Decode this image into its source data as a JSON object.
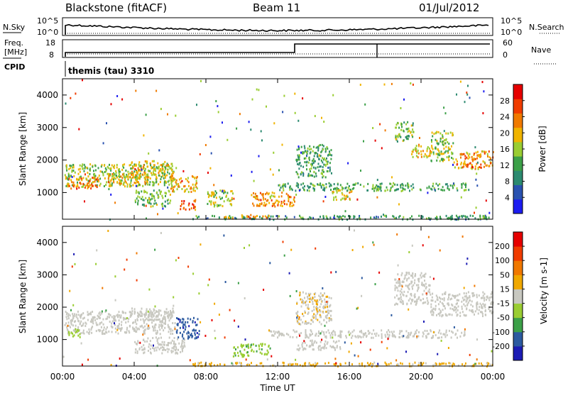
{
  "header": {
    "station": "Blackstone (fitACF)",
    "beam": "Beam 11",
    "date": "01/Jul/2012"
  },
  "noise_panel": {
    "left_label": "N.Sky",
    "right_label": "N.Search",
    "left_ticks": [
      "10^5",
      "10^0"
    ],
    "right_ticks": [
      "10^5",
      "10^0"
    ]
  },
  "freq_panel": {
    "label_line1": "Freq.",
    "label_line2": "[MHz]",
    "cpid_label": "CPID",
    "right_label": "Nave",
    "left_ticks": [
      "18",
      "8"
    ],
    "right_ticks": [
      "60",
      "0"
    ],
    "cpid_text": "themis (tau) 3310"
  },
  "colors": {
    "power_scale": [
      "#1c1cf0",
      "#2a52b0",
      "#2c8a70",
      "#3ca048",
      "#9acd32",
      "#f0b400",
      "#f07a00",
      "#f03c00",
      "#e60000"
    ],
    "velocity_scale": [
      "#e60000",
      "#f03c00",
      "#f07800",
      "#f0a800",
      "#c8c8c0",
      "#9acd32",
      "#3ca048",
      "#2c5aa0",
      "#1c1cb4"
    ]
  },
  "chart_data": [
    {
      "type": "heatmap",
      "title": "Power",
      "xlabel": "Time UT",
      "ylabel": "Slant Range [km]",
      "xlim": [
        "00:00",
        "24:00"
      ],
      "x_tick_labels": [
        "00:00",
        "04:00",
        "08:00",
        "12:00",
        "16:00",
        "20:00",
        "00:00"
      ],
      "ylim": [
        180,
        4500
      ],
      "y_tick_labels": [
        "1000",
        "2000",
        "3000",
        "4000"
      ],
      "colorbar": {
        "label": "Power [dB]",
        "tick_labels": [
          "4",
          "8",
          "12",
          "16",
          "20",
          "24",
          "28"
        ],
        "range": [
          0,
          32
        ]
      },
      "echo_regions": [
        {
          "t0": 0.1,
          "t1": 6.3,
          "r0": 1200,
          "r1": 1900,
          "v": 16
        },
        {
          "t0": 0.3,
          "t1": 2.0,
          "r0": 1150,
          "r1": 1500,
          "v": 24
        },
        {
          "t0": 2.5,
          "t1": 4.8,
          "r0": 1300,
          "r1": 1600,
          "v": 20
        },
        {
          "t0": 3.8,
          "t1": 6.2,
          "r0": 1550,
          "r1": 2000,
          "v": 18
        },
        {
          "t0": 4.0,
          "t1": 6.0,
          "r0": 600,
          "r1": 1100,
          "v": 14
        },
        {
          "t0": 6.0,
          "t1": 7.5,
          "r0": 1050,
          "r1": 1550,
          "v": 20
        },
        {
          "t0": 6.5,
          "t1": 7.4,
          "r0": 500,
          "r1": 800,
          "v": 26
        },
        {
          "t0": 7.2,
          "t1": 24.0,
          "r0": 200,
          "r1": 320,
          "v": 10
        },
        {
          "t0": 9.0,
          "t1": 11.5,
          "r0": 230,
          "r1": 340,
          "v": 22
        },
        {
          "t0": 8.0,
          "t1": 9.5,
          "r0": 600,
          "r1": 1100,
          "v": 16
        },
        {
          "t0": 10.5,
          "t1": 13.0,
          "r0": 600,
          "r1": 1050,
          "v": 22
        },
        {
          "t0": 12.0,
          "t1": 22.5,
          "r0": 1080,
          "r1": 1320,
          "v": 12
        },
        {
          "t0": 15.0,
          "t1": 16.2,
          "r0": 800,
          "r1": 1100,
          "v": 18
        },
        {
          "t0": 13.0,
          "t1": 15.0,
          "r0": 1500,
          "r1": 2500,
          "v": 12
        },
        {
          "t0": 18.5,
          "t1": 19.6,
          "r0": 2600,
          "r1": 3200,
          "v": 14
        },
        {
          "t0": 19.4,
          "t1": 20.5,
          "r0": 2100,
          "r1": 2500,
          "v": 20
        },
        {
          "t0": 20.5,
          "t1": 21.8,
          "r0": 2000,
          "r1": 2900,
          "v": 16
        },
        {
          "t0": 21.8,
          "t1": 24.0,
          "r0": 1750,
          "r1": 2300,
          "v": 22
        }
      ]
    },
    {
      "type": "heatmap",
      "title": "Velocity",
      "xlabel": "Time UT",
      "ylabel": "Slant Range [km]",
      "xlim": [
        "00:00",
        "24:00"
      ],
      "x_tick_labels": [
        "00:00",
        "04:00",
        "08:00",
        "12:00",
        "16:00",
        "20:00",
        "00:00"
      ],
      "ylim": [
        180,
        4500
      ],
      "y_tick_labels": [
        "1000",
        "2000",
        "3000",
        "4000"
      ],
      "colorbar": {
        "label": "Velocity [m s-1]",
        "tick_labels": [
          "200",
          "100",
          "50",
          "15",
          "-15",
          "-50",
          "-100",
          "-200"
        ],
        "range": [
          -250,
          250
        ]
      },
      "echo_regions": [
        {
          "t0": 0.1,
          "t1": 6.3,
          "r0": 1200,
          "r1": 1900,
          "v": 0
        },
        {
          "t0": 0.3,
          "t1": 1.0,
          "r0": 1100,
          "r1": 1400,
          "v": -60
        },
        {
          "t0": 3.8,
          "t1": 6.2,
          "r0": 1550,
          "r1": 2000,
          "v": 0
        },
        {
          "t0": 4.0,
          "t1": 6.8,
          "r0": 600,
          "r1": 1100,
          "v": 0
        },
        {
          "t0": 6.3,
          "t1": 7.6,
          "r0": 1050,
          "r1": 1700,
          "v": -180
        },
        {
          "t0": 7.2,
          "t1": 24.0,
          "r0": 200,
          "r1": 320,
          "v": 40
        },
        {
          "t0": 9.5,
          "t1": 11.5,
          "r0": 500,
          "r1": 900,
          "v": -70
        },
        {
          "t0": 11.5,
          "t1": 22.5,
          "r0": 1080,
          "r1": 1320,
          "v": 0
        },
        {
          "t0": 13.0,
          "t1": 15.5,
          "r0": 700,
          "r1": 1000,
          "v": 0
        },
        {
          "t0": 13.0,
          "t1": 15.0,
          "r0": 1500,
          "r1": 2500,
          "v": 20
        },
        {
          "t0": 18.5,
          "t1": 20.5,
          "r0": 2100,
          "r1": 3100,
          "v": 0
        },
        {
          "t0": 20.5,
          "t1": 24.0,
          "r0": 1750,
          "r1": 2500,
          "v": 0
        }
      ]
    }
  ]
}
